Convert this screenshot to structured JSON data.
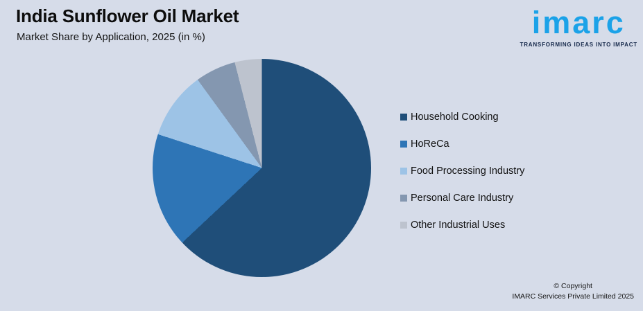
{
  "header": {
    "title": "India Sunflower Oil Market",
    "subtitle": "Market Share by Application, 2025 (in %)"
  },
  "logo": {
    "wordmark": "imarc",
    "tagline": "TRANSFORMING IDEAS INTO IMPACT",
    "wordmark_color": "#1BA2E8",
    "tagline_color": "#16294B"
  },
  "footer": {
    "copyright_line1": "© Copyright",
    "copyright_line2": "IMARC Services Private Limited 2025"
  },
  "colors": {
    "background": "#D6DCE9"
  },
  "chart_data": {
    "type": "pie",
    "title": "India Sunflower Oil Market",
    "subtitle": "Market Share by Application, 2025 (in %)",
    "unit": "%",
    "labels": [
      "Household Cooking",
      "HoReCa",
      "Food Processing Industry",
      "Personal Care Industry",
      "Other Industrial Uses"
    ],
    "values": [
      63,
      17,
      10,
      6,
      4
    ],
    "colors": [
      "#1F4E79",
      "#2E75B6",
      "#9DC3E6",
      "#8497B0",
      "#BDC3CE"
    ],
    "start_angle_deg": 0,
    "direction": "clockwise",
    "legend_position": "right",
    "data_labels_shown": false
  }
}
